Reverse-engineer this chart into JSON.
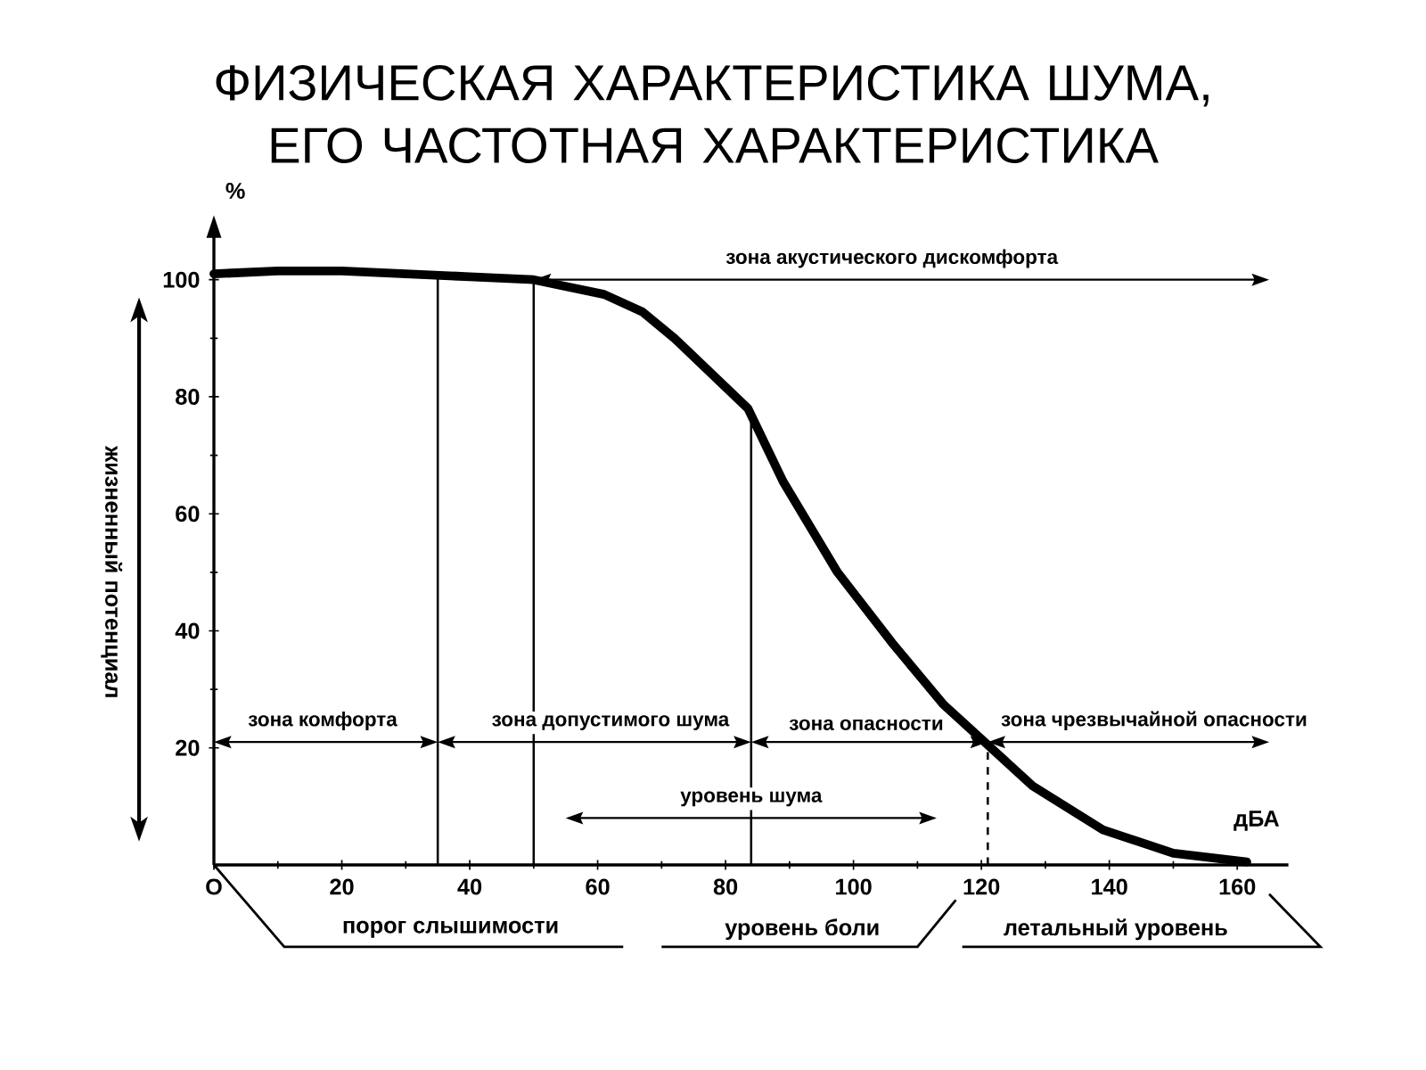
{
  "chart_data": {
    "type": "line",
    "title": "ФИЗИЧЕСКАЯ ХАРАКТЕРИСТИКА ШУМА, ЕГО ЧАСТОТНАЯ ХАРАКТЕРИСТИКА",
    "xlabel": "дБА",
    "ylabel": "%",
    "xlim": [
      0,
      168
    ],
    "ylim": [
      0,
      108
    ],
    "xticks": [
      {
        "value": 0,
        "label": "O"
      },
      20,
      40,
      60,
      80,
      100,
      120,
      140,
      160
    ],
    "yticks": [
      20,
      40,
      60,
      80,
      100
    ],
    "marker": "none",
    "line_style": "solid",
    "series": [
      {
        "color": "#000000",
        "x": [
          0,
          10,
          20,
          30,
          40,
          50,
          61,
          67,
          72,
          83.5,
          89,
          97.5,
          106,
          114,
          120,
          128,
          139,
          150,
          161.5
        ],
        "values": [
          101,
          101.5,
          101.5,
          101,
          100.5,
          100,
          97.5,
          94.5,
          90,
          78,
          65.5,
          50,
          38,
          27.5,
          21.5,
          13.5,
          6,
          2,
          0.5
        ]
      }
    ],
    "ref_lines": [
      {
        "axis": "x",
        "value": 35,
        "color": "#000000"
      },
      {
        "axis": "x",
        "value": 50,
        "color": "#000000"
      },
      {
        "axis": "x",
        "value": 84,
        "color": "#000000"
      },
      {
        "axis": "x",
        "value": 121,
        "color": "#000000",
        "line_style": "dashed"
      }
    ],
    "annotations": [
      "зона акустического дискомфорта",
      "зона комфорта",
      "зона допустимого шума",
      "зона опасности",
      "зона чрезвычайной опасности",
      "уровень шума",
      "жизненный потенциал",
      "порог слышимости",
      "уровень боли",
      "летальный уровень"
    ]
  }
}
